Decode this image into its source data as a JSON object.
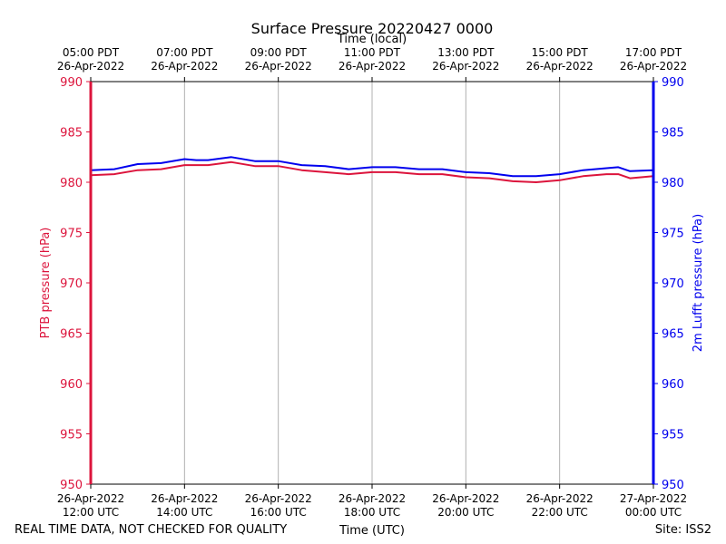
{
  "chart_data": {
    "type": "line",
    "title": "Surface Pressure 20220427 0000",
    "xlabel": "Time (UTC)",
    "xlabel_top": "Time (local)",
    "ylabel_left": "PTB pressure (hPa)",
    "ylabel_right": "2m Lufft pressure (hPa)",
    "footer_left": "REAL TIME DATA, NOT CHECKED FOR QUALITY",
    "footer_right": "Site: ISS2",
    "xlim_hours_utc": [
      12,
      24
    ],
    "ylim": [
      950,
      990
    ],
    "yticks": [
      950,
      955,
      960,
      965,
      970,
      975,
      980,
      985,
      990
    ],
    "grid": "vertical",
    "bottom_ticks": [
      {
        "hour": 12,
        "line1": "26-Apr-2022",
        "line2": "12:00 UTC"
      },
      {
        "hour": 14,
        "line1": "26-Apr-2022",
        "line2": "14:00 UTC"
      },
      {
        "hour": 16,
        "line1": "26-Apr-2022",
        "line2": "16:00 UTC"
      },
      {
        "hour": 18,
        "line1": "26-Apr-2022",
        "line2": "18:00 UTC"
      },
      {
        "hour": 20,
        "line1": "26-Apr-2022",
        "line2": "20:00 UTC"
      },
      {
        "hour": 22,
        "line1": "26-Apr-2022",
        "line2": "22:00 UTC"
      },
      {
        "hour": 24,
        "line1": "27-Apr-2022",
        "line2": "00:00 UTC"
      }
    ],
    "top_ticks": [
      {
        "hour": 12,
        "line1": "05:00 PDT",
        "line2": "26-Apr-2022"
      },
      {
        "hour": 14,
        "line1": "07:00 PDT",
        "line2": "26-Apr-2022"
      },
      {
        "hour": 16,
        "line1": "09:00 PDT",
        "line2": "26-Apr-2022"
      },
      {
        "hour": 18,
        "line1": "11:00 PDT",
        "line2": "26-Apr-2022"
      },
      {
        "hour": 20,
        "line1": "13:00 PDT",
        "line2": "26-Apr-2022"
      },
      {
        "hour": 22,
        "line1": "15:00 PDT",
        "line2": "26-Apr-2022"
      },
      {
        "hour": 24,
        "line1": "17:00 PDT",
        "line2": "26-Apr-2022"
      }
    ],
    "series": [
      {
        "axis": "left",
        "color": "#dc143c",
        "x": [
          12.0,
          12.5,
          13.0,
          13.5,
          14.0,
          14.25,
          14.5,
          15.0,
          15.5,
          16.0,
          16.5,
          17.0,
          17.5,
          18.0,
          18.5,
          19.0,
          19.5,
          20.0,
          20.5,
          21.0,
          21.5,
          22.0,
          22.5,
          23.0,
          23.25,
          23.5,
          24.0
        ],
        "values": [
          980.7,
          980.8,
          981.2,
          981.3,
          981.7,
          981.7,
          981.7,
          982.0,
          981.6,
          981.6,
          981.2,
          981.0,
          980.8,
          981.0,
          981.0,
          980.8,
          980.8,
          980.5,
          980.4,
          980.1,
          980.0,
          980.2,
          980.6,
          980.8,
          980.8,
          980.4,
          980.6
        ]
      },
      {
        "axis": "right",
        "color": "#0000ee",
        "x": [
          12.0,
          12.5,
          13.0,
          13.5,
          14.0,
          14.25,
          14.5,
          15.0,
          15.5,
          16.0,
          16.5,
          17.0,
          17.5,
          18.0,
          18.5,
          19.0,
          19.5,
          20.0,
          20.5,
          21.0,
          21.5,
          22.0,
          22.5,
          23.0,
          23.25,
          23.5,
          24.0
        ],
        "values": [
          981.2,
          981.3,
          981.8,
          981.9,
          982.3,
          982.2,
          982.2,
          982.5,
          982.1,
          982.1,
          981.7,
          981.6,
          981.3,
          981.5,
          981.5,
          981.3,
          981.3,
          981.0,
          980.9,
          980.6,
          980.6,
          980.8,
          981.2,
          981.4,
          981.5,
          981.1,
          981.2
        ]
      }
    ]
  }
}
